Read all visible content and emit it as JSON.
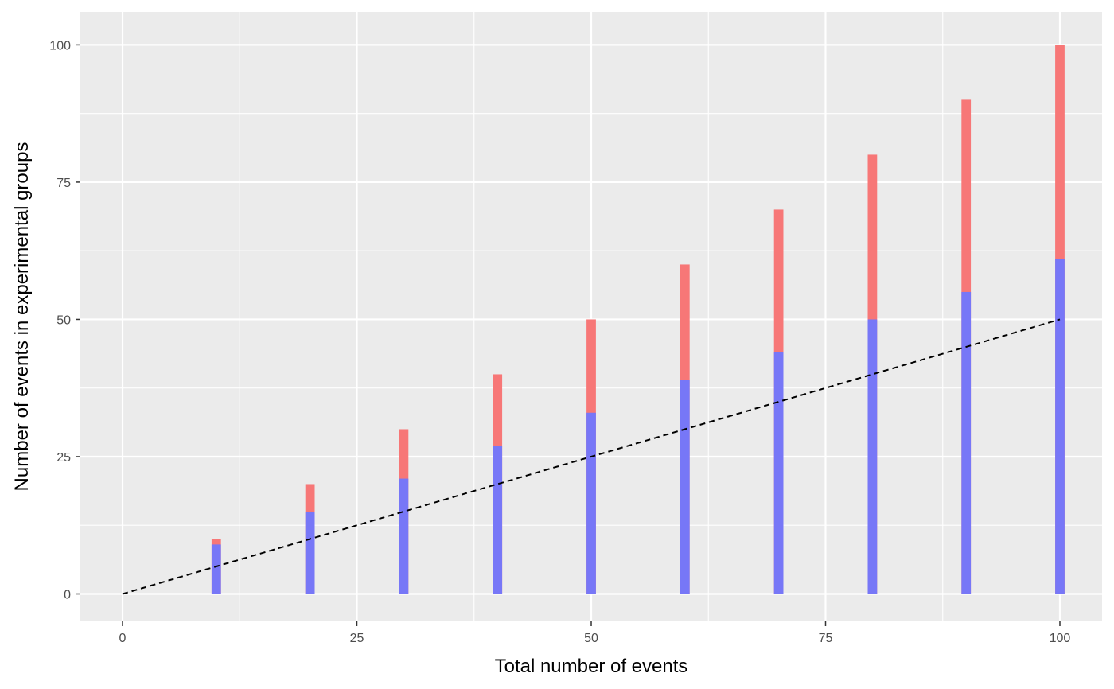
{
  "chart_data": {
    "type": "bar",
    "xlabel": "Total number of events",
    "ylabel": "Number of events in experimental groups",
    "xlim": [
      -4.5,
      104.5
    ],
    "ylim": [
      -5,
      106
    ],
    "x_ticks": [
      0,
      25,
      50,
      75,
      100
    ],
    "x_tick_labels": [
      "0",
      "25",
      "50",
      "75",
      "100"
    ],
    "y_ticks": [
      0,
      25,
      50,
      75,
      100
    ],
    "y_tick_labels": [
      "0",
      "25",
      "50",
      "75",
      "100"
    ],
    "x": [
      10,
      20,
      30,
      40,
      50,
      60,
      70,
      80,
      90,
      100
    ],
    "series": [
      {
        "values": [
          9,
          15,
          21,
          27,
          33,
          39,
          44,
          50,
          55,
          61
        ],
        "color": "#7777f7"
      },
      {
        "values": [
          10,
          20,
          30,
          40,
          50,
          60,
          70,
          80,
          90,
          100
        ],
        "color": "#f77777"
      }
    ],
    "reference_line": {
      "from": [
        0,
        0
      ],
      "to": [
        100,
        50
      ],
      "style": "dashed",
      "color": "#000000"
    },
    "grid": true,
    "panel_background": "#ebebeb",
    "grid_color": "#ffffff"
  }
}
